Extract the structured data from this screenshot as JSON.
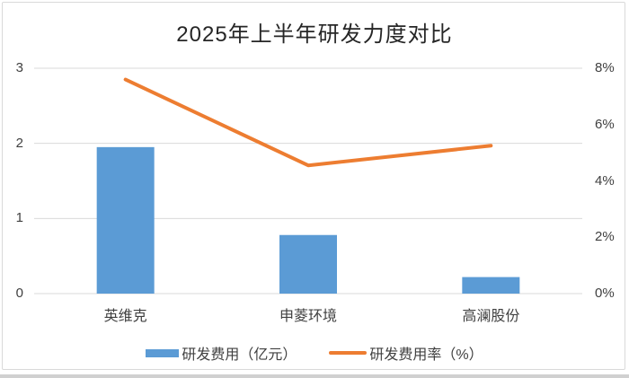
{
  "frame": {
    "background": "#ffffff",
    "border_color": "#d9d9d9",
    "bottom_strip_color": "#d0d0d0",
    "gridline_color": "#d9d9d9",
    "text_color": "#404040",
    "title_color": "#262626"
  },
  "chart_data": {
    "type": "combo",
    "title": "2025年上半年研发力度对比",
    "categories": [
      "英维克",
      "申菱环境",
      "高澜股份"
    ],
    "series": [
      {
        "name": "研发费用（亿元）",
        "type": "bar",
        "axis": "left",
        "color": "#5b9bd5",
        "values": [
          1.95,
          0.78,
          0.22
        ]
      },
      {
        "name": "研发费用率（%）",
        "type": "line",
        "axis": "right",
        "color": "#ed7d31",
        "values": [
          7.6,
          4.55,
          5.25
        ]
      }
    ],
    "left_axis": {
      "min": 0,
      "max": 3,
      "ticks": [
        "0",
        "1",
        "2",
        "3"
      ]
    },
    "right_axis": {
      "min": 0,
      "max": 8,
      "ticks": [
        "0%",
        "2%",
        "4%",
        "6%",
        "8%"
      ]
    },
    "grid": true,
    "legend_position": "bottom"
  }
}
